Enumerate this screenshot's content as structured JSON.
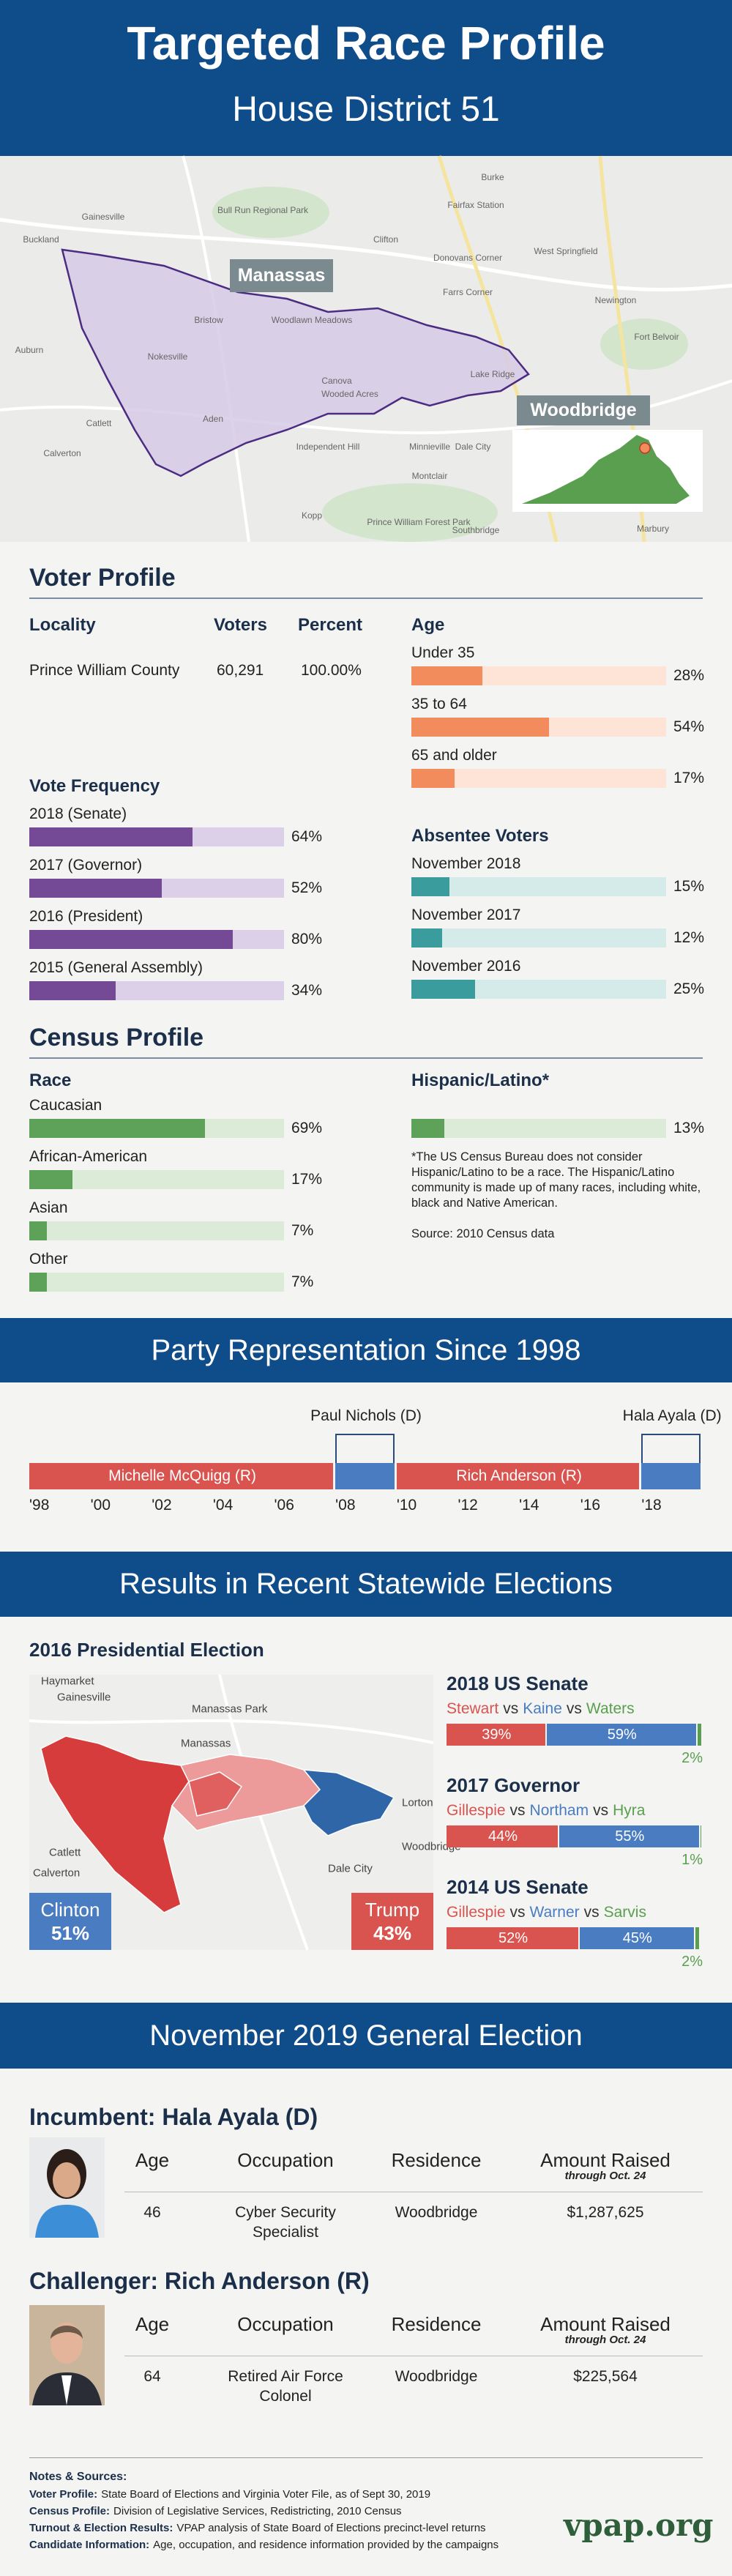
{
  "header": {
    "title": "Targeted Race Profile",
    "subtitle": "House District 51"
  },
  "district_map": {
    "labels": [
      "Manassas",
      "Woodbridge"
    ],
    "places": [
      "Gainesville",
      "Buckland",
      "Bull Run Regional Park",
      "Clifton",
      "Fairfax Station",
      "Burke",
      "West Springfield",
      "Newington",
      "Fort Belvoir",
      "Donovans Corner",
      "Farrs Corner",
      "Bristow",
      "Woodlawn Meadows",
      "Nokesville",
      "Canova",
      "Wooded Acres",
      "Lake Ridge",
      "Aden",
      "Catlett",
      "Calverton",
      "Auburn",
      "Independent Hill",
      "Minnieville",
      "Dale City",
      "Montclair",
      "Kopp",
      "Prince William Forest Park",
      "Southbridge",
      "Marbury"
    ]
  },
  "voter_profile": {
    "title": "Voter Profile",
    "locality_table": {
      "columns": [
        "Locality",
        "Voters",
        "Percent"
      ],
      "rows": [
        [
          "Prince William County",
          "60,291",
          "100.00%"
        ]
      ]
    },
    "age": {
      "title": "Age",
      "color": "#f28c5c",
      "track_color": "#fde4d7",
      "rows": [
        {
          "label": "Under 35",
          "value": 28,
          "value_label": "28%"
        },
        {
          "label": "35 to 64",
          "value": 54,
          "value_label": "54%"
        },
        {
          "label": "65 and older",
          "value": 17,
          "value_label": "17%"
        }
      ]
    },
    "vote_frequency": {
      "title": "Vote Frequency",
      "color": "#744a96",
      "track_color": "#dcd0e8",
      "rows": [
        {
          "label": "2018 (Senate)",
          "value": 64,
          "value_label": "64%"
        },
        {
          "label": "2017 (Governor)",
          "value": 52,
          "value_label": "52%"
        },
        {
          "label": "2016 (President)",
          "value": 80,
          "value_label": "80%"
        },
        {
          "label": "2015 (General Assembly)",
          "value": 34,
          "value_label": "34%"
        }
      ]
    },
    "absentee": {
      "title": "Absentee Voters",
      "color": "#3a9c9c",
      "track_color": "#d5ebea",
      "rows": [
        {
          "label": "November 2018",
          "value": 15,
          "value_label": "15%"
        },
        {
          "label": "November 2017",
          "value": 12,
          "value_label": "12%"
        },
        {
          "label": "November 2016",
          "value": 25,
          "value_label": "25%"
        }
      ]
    }
  },
  "census_profile": {
    "title": "Census Profile",
    "race": {
      "title": "Race",
      "color": "#5ea25a",
      "track_color": "#dcebd8",
      "rows": [
        {
          "label": "Caucasian",
          "value": 69,
          "value_label": "69%"
        },
        {
          "label": "African-American",
          "value": 17,
          "value_label": "17%"
        },
        {
          "label": "Asian",
          "value": 7,
          "value_label": "7%"
        },
        {
          "label": "Other",
          "value": 7,
          "value_label": "7%"
        }
      ]
    },
    "hispanic": {
      "title": "Hispanic/Latino*",
      "color": "#5ea25a",
      "track_color": "#dcebd8",
      "value": 13,
      "value_label": "13%",
      "footnote": "*The US Census Bureau does not consider Hispanic/Latino to be a race. The Hispanic/Latino community is made up of many races, including white, black and Native American.",
      "source": "Source: 2010 Census data"
    }
  },
  "party_representation": {
    "title": "Party Representation Since 1998",
    "xlim": [
      1998,
      2020
    ],
    "ticks": [
      {
        "value": 1998,
        "label": "'98"
      },
      {
        "value": 2000,
        "label": "'00"
      },
      {
        "value": 2002,
        "label": "'02"
      },
      {
        "value": 2004,
        "label": "'04"
      },
      {
        "value": 2006,
        "label": "'06"
      },
      {
        "value": 2008,
        "label": "'08"
      },
      {
        "value": 2010,
        "label": "'10"
      },
      {
        "value": 2012,
        "label": "'12"
      },
      {
        "value": 2014,
        "label": "'14"
      },
      {
        "value": 2016,
        "label": "'16"
      },
      {
        "value": 2018,
        "label": "'18"
      }
    ],
    "terms": [
      {
        "name": "Michelle McQuigg (R)",
        "start": 1998,
        "end": 2008,
        "color": "#d9534f"
      },
      {
        "name": "Paul Nichols (D)",
        "start": 2008,
        "end": 2010,
        "color": "#4a7cc1"
      },
      {
        "name": "Rich Anderson (R)",
        "start": 2010,
        "end": 2018,
        "color": "#d9534f"
      },
      {
        "name": "Hala Ayala (D)",
        "start": 2018,
        "end": 2020,
        "color": "#4a7cc1"
      }
    ]
  },
  "statewide": {
    "title": "Results in Recent Statewide Elections",
    "presidential": {
      "title": "2016 Presidential Election",
      "places": [
        "Haymarket",
        "Gainesville",
        "Manassas Park",
        "Manassas",
        "Catlett",
        "Calverton",
        "Dale City",
        "Lorton",
        "Woodbridge"
      ],
      "results": [
        {
          "name": "Clinton",
          "value_label": "51%",
          "color": "#4a7cc1"
        },
        {
          "name": "Trump",
          "value_label": "43%",
          "color": "#d9534f"
        }
      ]
    },
    "connector": "vs",
    "races": [
      {
        "title": "2018 US Senate",
        "candidates": [
          {
            "name": "Stewart",
            "value": 39,
            "value_label": "39%",
            "color": "#d9534f"
          },
          {
            "name": "Kaine",
            "value": 59,
            "value_label": "59%",
            "color": "#4a7cc1"
          },
          {
            "name": "Waters",
            "value": 2,
            "value_label": "2%",
            "color": "#5a9e4f"
          }
        ]
      },
      {
        "title": "2017 Governor",
        "candidates": [
          {
            "name": "Gillespie",
            "value": 44,
            "value_label": "44%",
            "color": "#d9534f"
          },
          {
            "name": "Northam",
            "value": 55,
            "value_label": "55%",
            "color": "#4a7cc1"
          },
          {
            "name": "Hyra",
            "value": 1,
            "value_label": "1%",
            "color": "#5a9e4f"
          }
        ]
      },
      {
        "title": "2014 US Senate",
        "candidates": [
          {
            "name": "Gillespie",
            "value": 52,
            "value_label": "52%",
            "color": "#d9534f"
          },
          {
            "name": "Warner",
            "value": 45,
            "value_label": "45%",
            "color": "#4a7cc1"
          },
          {
            "name": "Sarvis",
            "value": 2,
            "value_label": "2%",
            "color": "#5a9e4f"
          }
        ]
      }
    ]
  },
  "general_election": {
    "title": "November 2019 General Election",
    "columns": [
      "Age",
      "Occupation",
      "Residence",
      "Amount Raised"
    ],
    "amount_note": "through Oct. 24",
    "candidates": [
      {
        "heading": "Incumbent: Hala Ayala (D)",
        "age": 46,
        "occupation": "Cyber Security Specialist",
        "residence": "Woodbridge",
        "amount": "$1,287,625"
      },
      {
        "heading": "Challenger: Rich Anderson (R)",
        "age": 64,
        "occupation": "Retired Air Force Colonel",
        "residence": "Woodbridge",
        "amount": "$225,564"
      }
    ]
  },
  "notes": {
    "title": "Notes & Sources:",
    "items": [
      {
        "label": "Voter Profile:",
        "text": "State Board of Elections and Virginia Voter File, as of Sept 30, 2019"
      },
      {
        "label": "Census Profile:",
        "text": "Division of Legislative Services, Redistricting, 2010 Census"
      },
      {
        "label": "Turnout & Election Results:",
        "text": "VPAP analysis of State Board of Elections precinct-level returns"
      },
      {
        "label": "Candidate Information:",
        "text": "Age, occupation, and residence information provided by the campaigns"
      }
    ],
    "logo": "vpap.org"
  }
}
